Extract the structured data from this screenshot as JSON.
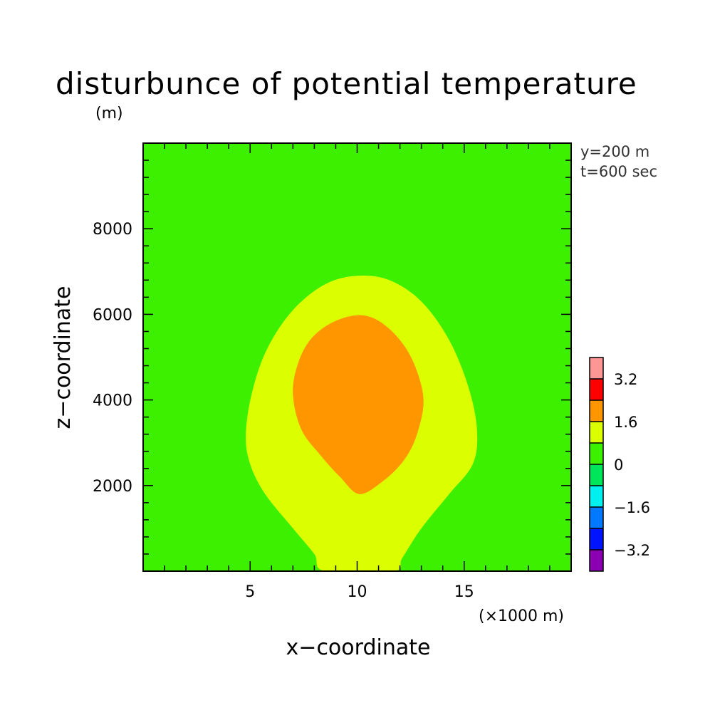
{
  "chart_data": {
    "type": "contour",
    "title": "disturbunce of potential temperature",
    "yunit": "(m)",
    "xlabel": "x−coordinate",
    "ylabel": "z−coordinate",
    "xunit": "(×1000 m)",
    "annotations": [
      "y=200 m",
      "t=600 sec"
    ],
    "xlim": [
      0,
      20
    ],
    "ylim": [
      0,
      10000
    ],
    "x_ticks": [
      {
        "value": 5,
        "label": "5"
      },
      {
        "value": 10,
        "label": "10"
      },
      {
        "value": 15,
        "label": "15"
      }
    ],
    "y_ticks": [
      {
        "value": 2000,
        "label": "2000"
      },
      {
        "value": 4000,
        "label": "4000"
      },
      {
        "value": 6000,
        "label": "6000"
      },
      {
        "value": 8000,
        "label": "8000"
      }
    ],
    "x_minor_step": 1,
    "y_minor_step": 400,
    "colorbar": {
      "levels": [
        -4.0,
        -3.2,
        -2.4,
        -1.6,
        -0.8,
        0,
        0.8,
        1.6,
        2.4,
        3.2,
        4.0
      ],
      "colors": [
        "#8c00b4",
        "#0014ff",
        "#0078ff",
        "#00f0f0",
        "#00e65a",
        "#3cf000",
        "#dcff00",
        "#ff9600",
        "#ff0000",
        "#ff9696"
      ],
      "labels": [
        {
          "value": -3.2,
          "label": "−3.2"
        },
        {
          "value": -1.6,
          "label": "−1.6"
        },
        {
          "value": 0,
          "label": "0"
        },
        {
          "value": 1.6,
          "label": "1.6"
        },
        {
          "value": 3.2,
          "label": "3.2"
        }
      ]
    },
    "background_color": "#3cf000",
    "regions": [
      {
        "range": "0.8 to 1.6",
        "color": "#dcff00",
        "contour": [
          [
            8.5,
            0
          ],
          [
            8.0,
            400
          ],
          [
            7.0,
            1000
          ],
          [
            5.7,
            1800
          ],
          [
            5.0,
            2500
          ],
          [
            4.8,
            3200
          ],
          [
            5.1,
            4200
          ],
          [
            5.8,
            5200
          ],
          [
            7.0,
            6100
          ],
          [
            8.5,
            6700
          ],
          [
            10.0,
            6900
          ],
          [
            11.5,
            6800
          ],
          [
            13.0,
            6300
          ],
          [
            14.3,
            5400
          ],
          [
            15.2,
            4300
          ],
          [
            15.6,
            3300
          ],
          [
            15.4,
            2500
          ],
          [
            14.3,
            1800
          ],
          [
            13.0,
            1000
          ],
          [
            12.1,
            300
          ],
          [
            11.7,
            0
          ]
        ]
      },
      {
        "range": "1.6 to 2.4",
        "color": "#ff9600",
        "contour": [
          [
            10.1,
            1800
          ],
          [
            9.2,
            2200
          ],
          [
            8.3,
            2700
          ],
          [
            7.4,
            3300
          ],
          [
            7.0,
            4100
          ],
          [
            7.2,
            4800
          ],
          [
            7.8,
            5400
          ],
          [
            8.8,
            5800
          ],
          [
            10.0,
            5980
          ],
          [
            11.0,
            5850
          ],
          [
            12.0,
            5400
          ],
          [
            12.7,
            4800
          ],
          [
            13.1,
            4000
          ],
          [
            12.8,
            3200
          ],
          [
            12.2,
            2600
          ],
          [
            11.2,
            2100
          ]
        ]
      }
    ]
  }
}
